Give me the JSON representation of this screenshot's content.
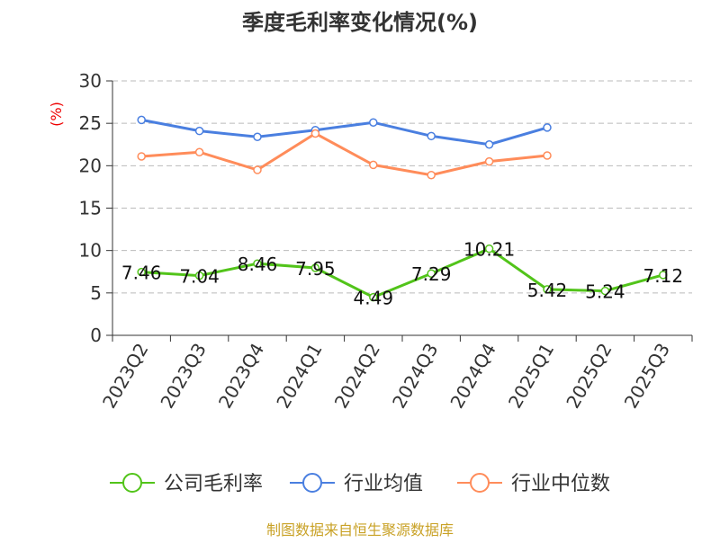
{
  "chart_data": {
    "type": "line",
    "title": "季度毛利率变化情况(%)",
    "ylabel": "(%)",
    "ylim": [
      0,
      30
    ],
    "yticks": [
      0,
      5,
      10,
      15,
      20,
      25,
      30
    ],
    "grid": true,
    "legend_position": "bottom",
    "categories": [
      "2023Q2",
      "2023Q3",
      "2023Q4",
      "2024Q1",
      "2024Q2",
      "2024Q3",
      "2024Q4",
      "2025Q1",
      "2025Q2",
      "2025Q3"
    ],
    "series": [
      {
        "name": "公司毛利率",
        "color": "#52c41a",
        "values": [
          7.46,
          7.04,
          8.46,
          7.95,
          4.49,
          7.29,
          10.21,
          5.42,
          5.24,
          7.12
        ],
        "labels": [
          "7.46",
          "7.04",
          "8.46",
          "7.95",
          "4.49",
          "7.29",
          "10.21",
          "5.42",
          "5.24",
          "7.12"
        ]
      },
      {
        "name": "行业均值",
        "color": "#4a7fe0",
        "values": [
          25.4,
          24.1,
          23.4,
          24.2,
          25.1,
          23.5,
          22.5,
          24.5,
          null,
          null
        ]
      },
      {
        "name": "行业中位数",
        "color": "#ff8c5a",
        "values": [
          21.1,
          21.6,
          19.5,
          23.8,
          20.1,
          18.9,
          20.5,
          21.2,
          null,
          null
        ]
      }
    ]
  },
  "source": "制图数据来自恒生聚源数据库"
}
